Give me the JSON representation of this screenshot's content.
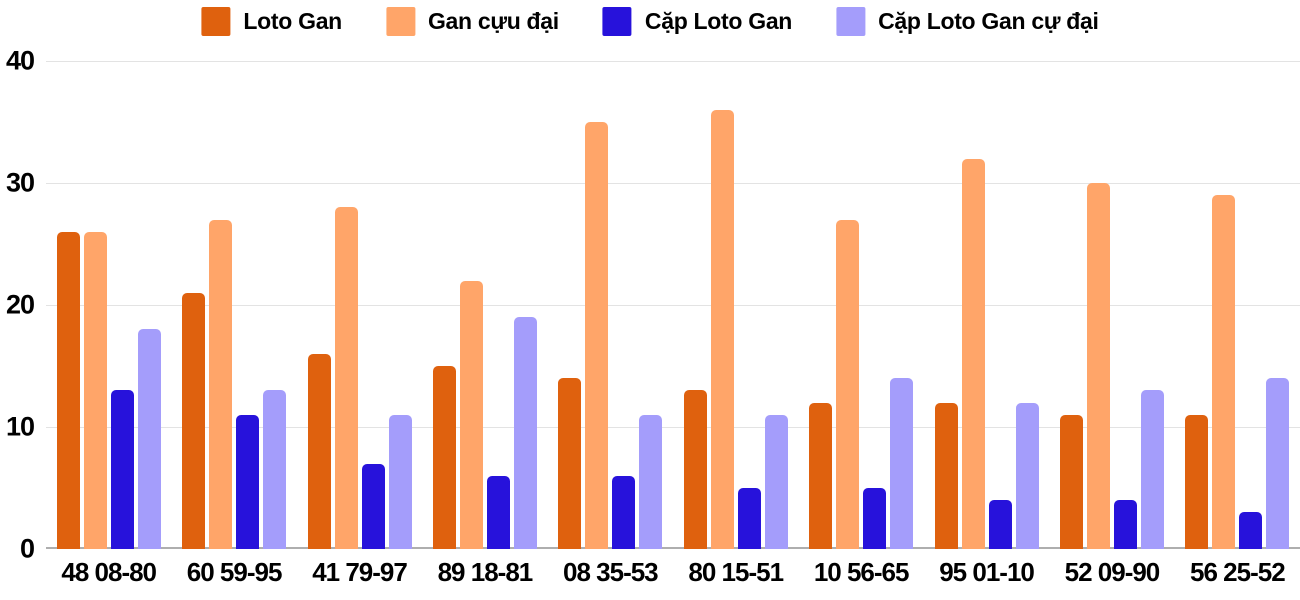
{
  "chart_data": {
    "type": "bar",
    "categories": [
      "48 08-80",
      "60 59-95",
      "41 79-97",
      "89 18-81",
      "08 35-53",
      "80 15-51",
      "10 56-65",
      "95 01-10",
      "52 09-90",
      "56 25-52"
    ],
    "series": [
      {
        "name": "Loto Gan",
        "color": "#df610e",
        "values": [
          26,
          21,
          16,
          15,
          14,
          13,
          12,
          12,
          11,
          11
        ]
      },
      {
        "name": "Gan cựu đại",
        "color": "#ffa569",
        "values": [
          26,
          27,
          28,
          22,
          35,
          36,
          27,
          32,
          30,
          29
        ]
      },
      {
        "name": "Cặp Loto Gan",
        "color": "#2712db",
        "values": [
          13,
          11,
          7,
          6,
          6,
          5,
          5,
          4,
          4,
          3
        ]
      },
      {
        "name": "Cặp Loto Gan cự đại",
        "color": "#a49dfb",
        "values": [
          18,
          13,
          11,
          19,
          11,
          11,
          14,
          12,
          13,
          14
        ]
      }
    ],
    "title": "",
    "xlabel": "",
    "ylabel": "",
    "ylim": [
      0,
      40
    ],
    "yticks": [
      0,
      10,
      20,
      30,
      40
    ],
    "grid": true,
    "legend_position": "top"
  },
  "colors": {
    "background": "#ffffff",
    "gridline": "#e3e3e3",
    "baseline": "#aeaeae",
    "text": "#000000"
  }
}
